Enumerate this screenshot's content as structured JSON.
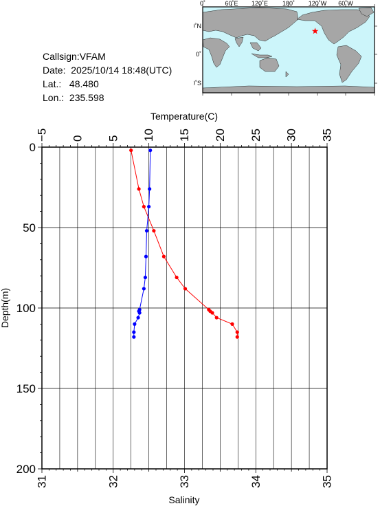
{
  "info": {
    "callsign": "Callsign:VFAM",
    "date": "Date:  2025/10/14 18:48(UTC)",
    "lat_label": "Lat.:",
    "lat_value": "48.480",
    "lon_label": "Lon.:",
    "lon_value": "235.598"
  },
  "map": {
    "lon_ticks": [
      "0˚",
      "60˚E",
      "120˚E",
      "180˚",
      "120˚W",
      "60˚W"
    ],
    "lat_ticks": [
      "60˚N",
      "0˚",
      "60˚S"
    ],
    "ocean_color": "#ccf5fa",
    "land_color": "#a6a6a6",
    "marker_color": "#ff0000",
    "marker_icon": "star-icon",
    "station": {
      "lon": 235.598,
      "lat": 48.48
    }
  },
  "chart_data": {
    "type": "line",
    "title": "",
    "ylabel": "Depth(m)",
    "x_top_label": "Temperature(C)",
    "x_bottom_label": "Salinity",
    "temperature_range": [
      -5,
      35
    ],
    "salinity_range": [
      31,
      35
    ],
    "depth_range": [
      0,
      200
    ],
    "temperature_ticks": [
      "−5",
      "0",
      "5",
      "10",
      "15",
      "20",
      "25",
      "30",
      "35"
    ],
    "salinity_ticks": [
      "31",
      "32",
      "33",
      "34",
      "35"
    ],
    "depth_ticks": [
      "0",
      "50",
      "100",
      "150",
      "200"
    ],
    "grid": true,
    "series": [
      {
        "color": "#ff0000",
        "axis": "temperature",
        "points": [
          [
            7.5,
            2
          ],
          [
            8.6,
            26
          ],
          [
            9.3,
            37
          ],
          [
            10.7,
            52
          ],
          [
            12.1,
            68
          ],
          [
            13.9,
            81
          ],
          [
            15.1,
            88
          ],
          [
            18.4,
            101
          ],
          [
            18.6,
            102
          ],
          [
            18.9,
            103
          ],
          [
            19.5,
            106
          ],
          [
            21.7,
            110
          ],
          [
            22.4,
            115
          ],
          [
            22.4,
            118
          ]
        ]
      },
      {
        "color": "#0000ff",
        "axis": "salinity",
        "points": [
          [
            32.52,
            2
          ],
          [
            32.51,
            26
          ],
          [
            32.5,
            37
          ],
          [
            32.47,
            52
          ],
          [
            32.46,
            68
          ],
          [
            32.45,
            81
          ],
          [
            32.43,
            88
          ],
          [
            32.37,
            101
          ],
          [
            32.36,
            102
          ],
          [
            32.37,
            103
          ],
          [
            32.35,
            106
          ],
          [
            32.3,
            110
          ],
          [
            32.29,
            115
          ],
          [
            32.29,
            118
          ]
        ]
      }
    ]
  }
}
